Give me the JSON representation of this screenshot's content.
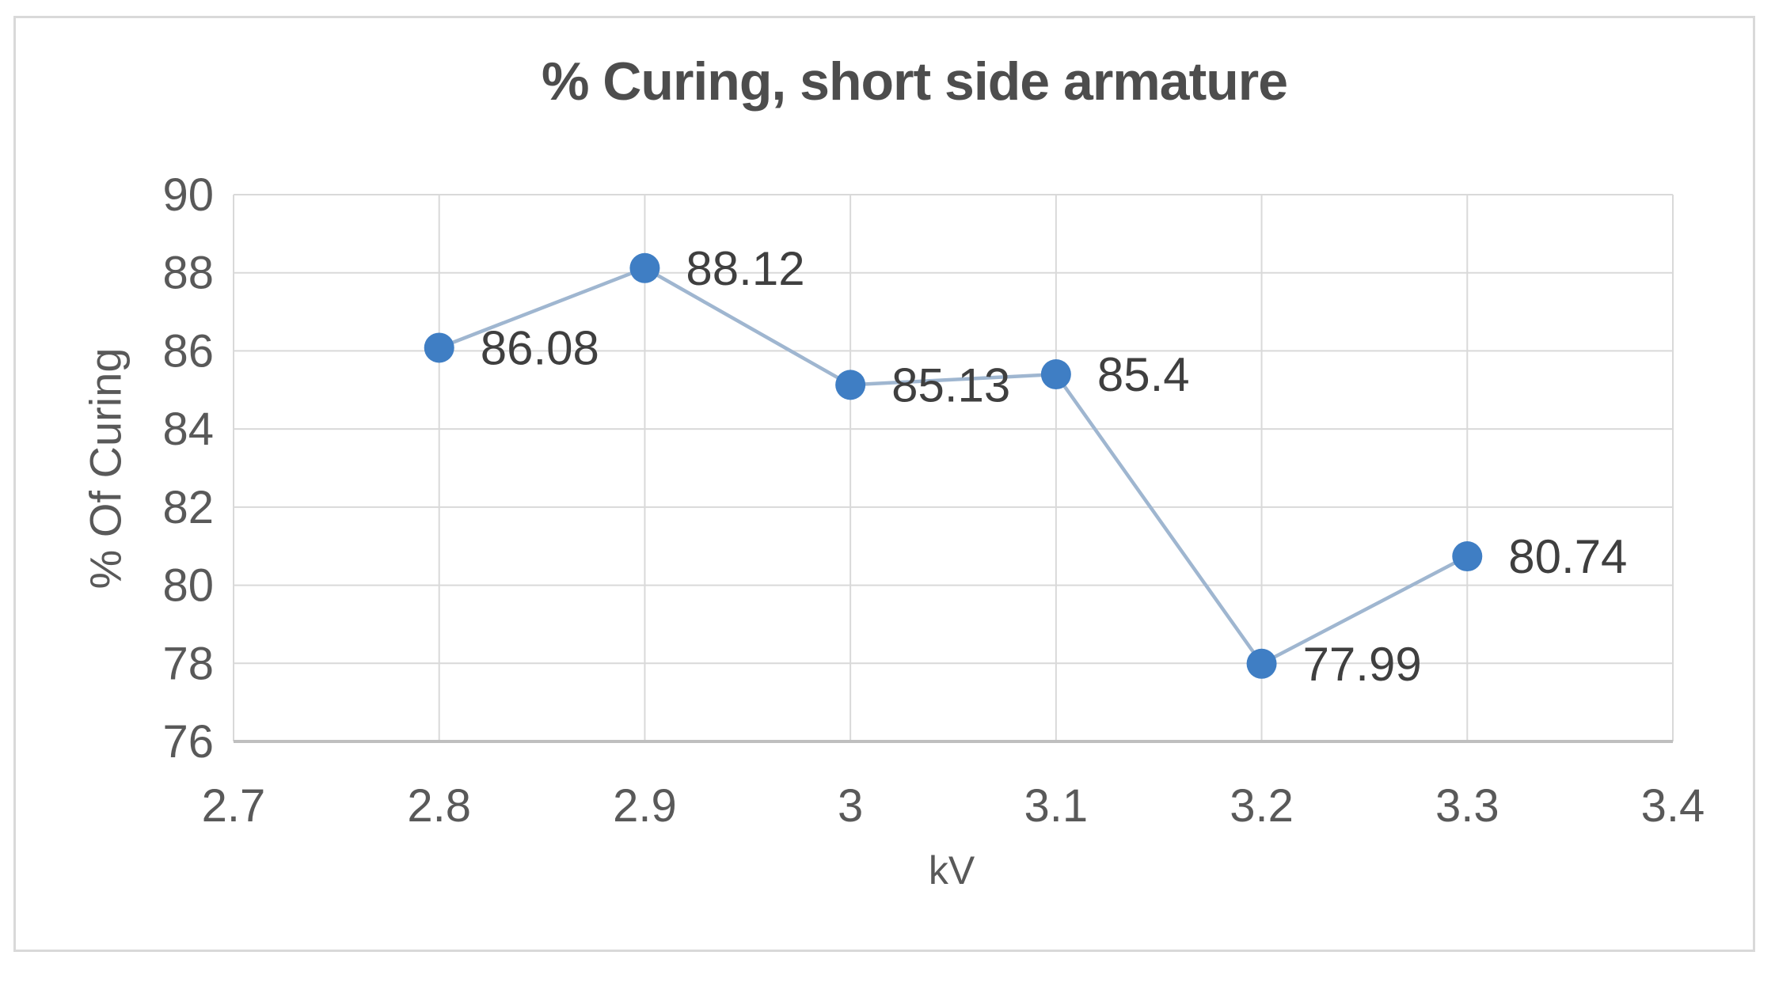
{
  "window": {
    "background_color": "#ffffff",
    "border_color": "#d9d9d9"
  },
  "chart_data": {
    "type": "line",
    "title": "% Curing, short side armature",
    "xlabel": "kV",
    "ylabel": "% Of Curing",
    "x": [
      2.8,
      2.9,
      3.0,
      3.1,
      3.2,
      3.3
    ],
    "values": [
      86.08,
      88.12,
      85.13,
      85.4,
      77.99,
      80.74
    ],
    "point_labels": [
      "86.08",
      "88.12",
      "85.13",
      "85.4",
      "77.99",
      "80.74"
    ],
    "xlim": [
      2.7,
      3.4
    ],
    "ylim": [
      76,
      90
    ],
    "xticks": [
      "2.7",
      "2.8",
      "2.9",
      "3",
      "3.1",
      "3.2",
      "3.3",
      "3.4"
    ],
    "xtick_values": [
      2.7,
      2.8,
      2.9,
      3.0,
      3.1,
      3.2,
      3.3,
      3.4
    ],
    "yticks": [
      "90",
      "88",
      "86",
      "84",
      "82",
      "80",
      "78",
      "76"
    ],
    "ytick_values": [
      90,
      88,
      86,
      84,
      82,
      80,
      78,
      76
    ],
    "grid": true,
    "legend": false,
    "marker_style": "circle",
    "colors": {
      "marker": "#3f7ec4",
      "line": "#9fb6d0",
      "gridline": "#d9d9d9",
      "axis_line": "#bfbfbf",
      "title_text": "#4d4d4d",
      "tick_text": "#595959",
      "data_label_text": "#3f3f3f"
    }
  }
}
